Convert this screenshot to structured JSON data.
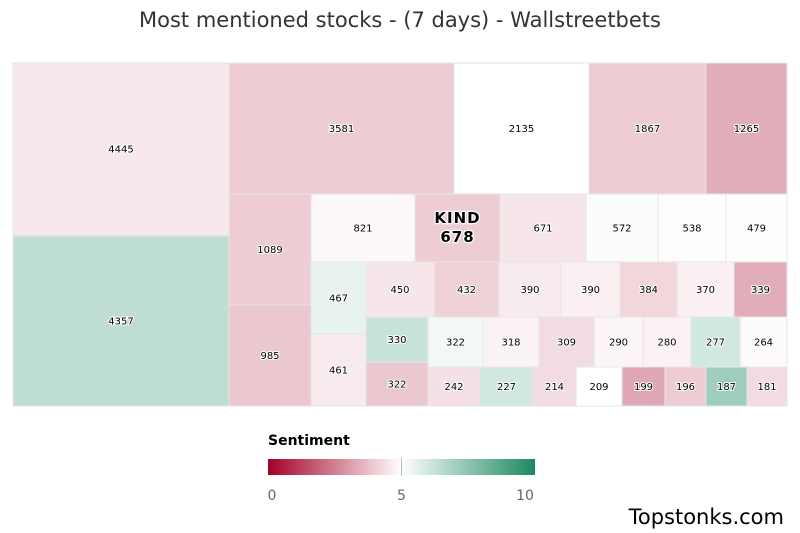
{
  "title": "Most mentioned stocks - (7 days) - Wallstreetbets",
  "brand": "Topstonks.com",
  "chart_data": {
    "type": "treemap",
    "title": "Most mentioned stocks - (7 days) - Wallstreetbets",
    "color_scale": {
      "title": "Sentiment",
      "min": 0,
      "mid": 5,
      "max": 10,
      "ticks": [
        "0",
        "5",
        "10"
      ],
      "colors": [
        "#a50026",
        "#ffffff",
        "#1a8a5f"
      ]
    },
    "tiles": [
      {
        "label": "",
        "value": 4445,
        "sentiment": 4.55
      },
      {
        "label": "",
        "value": 4357,
        "sentiment": 6.4
      },
      {
        "label": "",
        "value": 3581,
        "sentiment": 4.0
      },
      {
        "label": "",
        "value": 2135,
        "sentiment": 5.0
      },
      {
        "label": "",
        "value": 1867,
        "sentiment": 4.0
      },
      {
        "label": "",
        "value": 1265,
        "sentiment": 3.4
      },
      {
        "label": "",
        "value": 1089,
        "sentiment": 4.0
      },
      {
        "label": "",
        "value": 985,
        "sentiment": 3.9
      },
      {
        "label": "",
        "value": 821,
        "sentiment": 4.85
      },
      {
        "label": "KIND",
        "value": 678,
        "sentiment": 4.0
      },
      {
        "label": "",
        "value": 671,
        "sentiment": 4.5
      },
      {
        "label": "",
        "value": 572,
        "sentiment": 5.1
      },
      {
        "label": "",
        "value": 538,
        "sentiment": 4.95
      },
      {
        "label": "",
        "value": 479,
        "sentiment": 5.05
      },
      {
        "label": "",
        "value": 467,
        "sentiment": 5.5
      },
      {
        "label": "",
        "value": 461,
        "sentiment": 4.6
      },
      {
        "label": "",
        "value": 450,
        "sentiment": 4.5
      },
      {
        "label": "",
        "value": 432,
        "sentiment": 4.1
      },
      {
        "label": "",
        "value": 390,
        "sentiment": 4.6
      },
      {
        "label": "",
        "value": 390,
        "sentiment": 4.7
      },
      {
        "label": "",
        "value": 384,
        "sentiment": 4.2
      },
      {
        "label": "",
        "value": 370,
        "sentiment": 4.7
      },
      {
        "label": "",
        "value": 339,
        "sentiment": 3.4
      },
      {
        "label": "",
        "value": 330,
        "sentiment": 6.2
      },
      {
        "label": "",
        "value": 322,
        "sentiment": 3.9
      },
      {
        "label": "",
        "value": 322,
        "sentiment": 5.3
      },
      {
        "label": "",
        "value": 318,
        "sentiment": 4.75
      },
      {
        "label": "",
        "value": 309,
        "sentiment": 4.3
      },
      {
        "label": "",
        "value": 290,
        "sentiment": 4.8
      },
      {
        "label": "",
        "value": 280,
        "sentiment": 4.75
      },
      {
        "label": "",
        "value": 277,
        "sentiment": 6.0
      },
      {
        "label": "",
        "value": 264,
        "sentiment": 4.9
      },
      {
        "label": "",
        "value": 242,
        "sentiment": 4.4
      },
      {
        "label": "",
        "value": 227,
        "sentiment": 6.0
      },
      {
        "label": "",
        "value": 214,
        "sentiment": 4.3
      },
      {
        "label": "",
        "value": 209,
        "sentiment": 5.0
      },
      {
        "label": "",
        "value": 199,
        "sentiment": 3.3
      },
      {
        "label": "",
        "value": 196,
        "sentiment": 4.0
      },
      {
        "label": "",
        "value": 187,
        "sentiment": 7.1
      },
      {
        "label": "",
        "value": 181,
        "sentiment": 4.3
      }
    ]
  }
}
